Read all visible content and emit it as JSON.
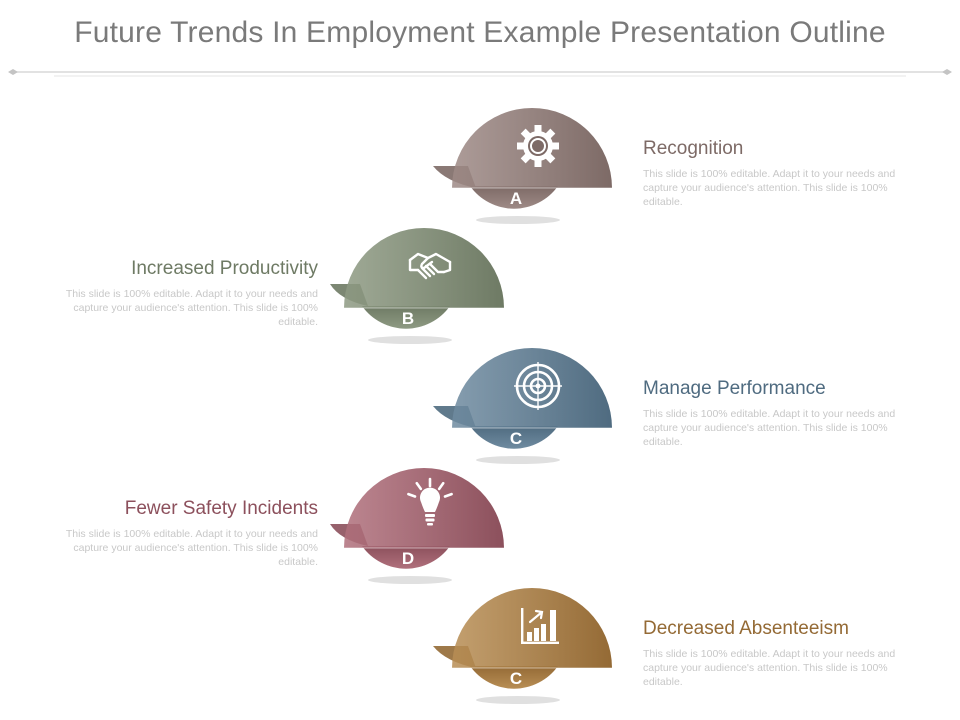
{
  "title": "Future Trends In Employment Example Presentation Outline",
  "steps": [
    {
      "letter": "A",
      "label": "Recognition",
      "icon": "gear-icon",
      "color": "#9e8a86",
      "dark": "#7d6a66",
      "side": "right",
      "desc": "This slide is 100% editable. Adapt it to your needs and capture your audience's attention. This slide is 100% editable."
    },
    {
      "letter": "B",
      "label": "Increased Productivity",
      "icon": "handshake-icon",
      "color": "#8e9a83",
      "dark": "#6e7a64",
      "side": "left",
      "desc": "This slide is 100% editable. Adapt it to your needs and capture your audience's attention. This slide is 100% editable."
    },
    {
      "letter": "C",
      "label": "Manage Performance",
      "icon": "target-icon",
      "color": "#6f8ba0",
      "dark": "#4f6b80",
      "side": "right",
      "desc": "This slide is 100% editable. Adapt it to your needs and capture your audience's attention. This slide is 100% editable."
    },
    {
      "letter": "D",
      "label": "Fewer Safety Incidents",
      "icon": "lightbulb-icon",
      "color": "#b0707c",
      "dark": "#8c505c",
      "side": "left",
      "desc": "This slide is 100% editable. Adapt it to your needs and capture your audience's attention. This slide is 100% editable."
    },
    {
      "letter": "C",
      "label": "Decreased Absenteeism",
      "icon": "bar-chart-icon",
      "color": "#b88e55",
      "dark": "#946a35",
      "side": "right",
      "desc": "This slide is 100% editable. Adapt it to your needs and capture your audience's attention. This slide is 100% editable."
    }
  ]
}
